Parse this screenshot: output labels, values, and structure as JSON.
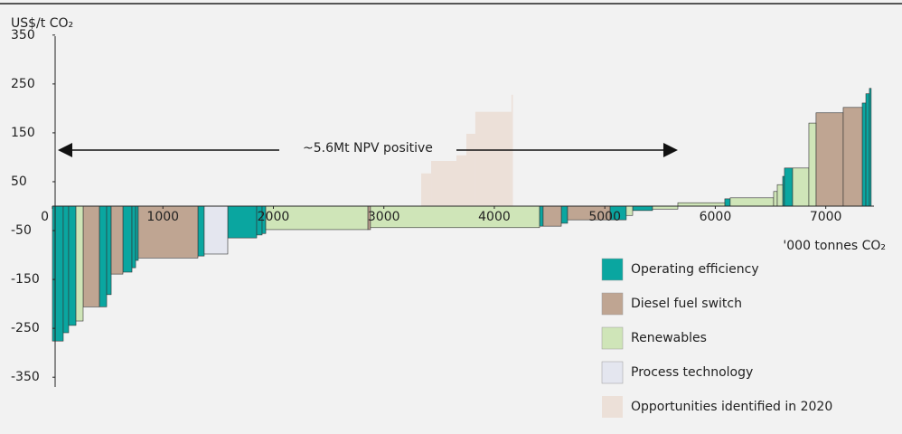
{
  "chart_data": {
    "type": "mac",
    "y_label": "US$/t CO₂",
    "x_label": "'000 tonnes CO₂",
    "annotation": "~5.6Mt  NPV positive",
    "annotation_range": [
      0,
      5661
    ],
    "xlim": [
      0,
      7600
    ],
    "ylim": [
      -370,
      370
    ],
    "xticks": [
      0,
      1000,
      2000,
      3000,
      4000,
      5000,
      6000,
      7000
    ],
    "yticks": [
      350,
      250,
      150,
      50,
      -50,
      -150,
      -250,
      -350
    ],
    "series": [
      {
        "name": "Operating efficiency",
        "color": "#0aa6a0",
        "x0": [
          0,
          98,
          147,
          425,
          491,
          638,
          720,
          753,
          1317,
          1587,
          1849,
          1898,
          4409,
          4606,
          5047,
          5252,
          6086,
          6610,
          6626,
          7330,
          7363,
          7395
        ],
        "x1": [
          98,
          147,
          213,
          491,
          532,
          720,
          753,
          777,
          1374,
          1849,
          1898,
          1931,
          4442,
          4663,
          5194,
          5432,
          6135,
          6626,
          6700,
          7363,
          7395,
          7411
        ],
        "values": [
          -276,
          -259,
          -244,
          -206,
          -181,
          -135,
          -126,
          -111,
          -102,
          -65,
          -59,
          -56,
          -41,
          -35,
          -28,
          -9,
          15,
          61,
          78,
          211,
          230,
          241
        ]
      },
      {
        "name": "Diesel fuel switch",
        "color": "#bfa592",
        "x0": [
          278,
          532,
          777,
          2855,
          4442,
          4663,
          6912,
          7158
        ],
        "x1": [
          425,
          638,
          1317,
          2879,
          4606,
          5047,
          7158,
          7330
        ],
        "values": [
          -206,
          -139,
          -106,
          -48,
          -41,
          -28,
          191,
          202
        ]
      },
      {
        "name": "Renewables",
        "color": "#cfe5b8",
        "x0": [
          213,
          1931,
          2879,
          5194,
          5432,
          5661,
          6135,
          6528,
          6561,
          6700,
          6847
        ],
        "x1": [
          278,
          2855,
          4409,
          5252,
          5661,
          6086,
          6528,
          6561,
          6610,
          6847,
          6912
        ],
        "values": [
          -235,
          -48,
          -44,
          -19,
          -6,
          7,
          17,
          30,
          44,
          78,
          170
        ]
      },
      {
        "name": "Process technology",
        "color": "#e4e6ef",
        "x0": [
          1374
        ],
        "x1": [
          1587
        ],
        "values": [
          -98
        ]
      },
      {
        "name": "Opportunities identified in 2020",
        "color": "#ece0d8",
        "faint": true,
        "x0": [
          3338,
          3428,
          3747,
          3828,
          4155
        ],
        "x1": [
          3428,
          3747,
          3828,
          4155,
          4168
        ],
        "values": [
          67,
          104,
          148,
          193,
          228
        ]
      }
    ]
  }
}
